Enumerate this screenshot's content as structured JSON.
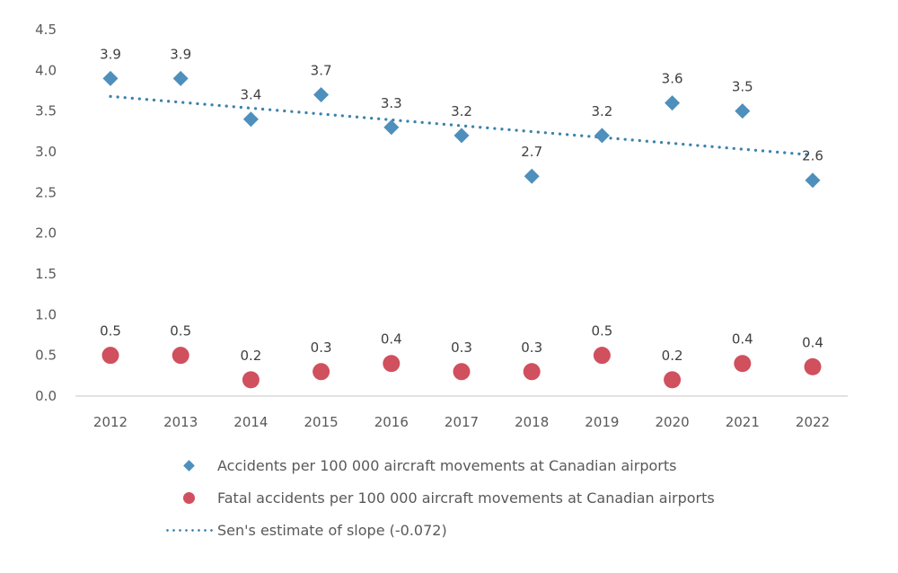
{
  "chart_data": {
    "type": "scatter",
    "title": "",
    "xlabel": "",
    "ylabel": "",
    "ylim": [
      0,
      4.5
    ],
    "yticks": [
      "0.0",
      "0.5",
      "1.0",
      "1.5",
      "2.0",
      "2.5",
      "3.0",
      "3.5",
      "4.0",
      "4.5"
    ],
    "ytick_values": [
      0,
      0.5,
      1.0,
      1.5,
      2.0,
      2.5,
      3.0,
      3.5,
      4.0,
      4.5
    ],
    "categories": [
      "2012",
      "2013",
      "2014",
      "2015",
      "2016",
      "2017",
      "2018",
      "2019",
      "2020",
      "2021",
      "2022"
    ],
    "grid": false,
    "legend_position": "bottom",
    "series": [
      {
        "name": "Accidents per 100 000 aircraft movements at Canadian airports",
        "marker": "diamond",
        "color": "#4e8fbc",
        "values": [
          3.9,
          3.9,
          3.4,
          3.7,
          3.3,
          3.2,
          2.7,
          3.2,
          3.6,
          3.5,
          2.65
        ],
        "labels": [
          "3.9",
          "3.9",
          "3.4",
          "3.7",
          "3.3",
          "3.2",
          "2.7",
          "3.2",
          "3.6",
          "3.5",
          "2.6"
        ]
      },
      {
        "name": "Fatal accidents per 100 000 aircraft movements at Canadian airports",
        "marker": "circle",
        "color": "#d0505e",
        "values": [
          0.5,
          0.5,
          0.2,
          0.3,
          0.4,
          0.3,
          0.3,
          0.5,
          0.2,
          0.4,
          0.36
        ],
        "labels": [
          "0.5",
          "0.5",
          "0.2",
          "0.3",
          "0.4",
          "0.3",
          "0.3",
          "0.5",
          "0.2",
          "0.4",
          "0.4"
        ]
      }
    ],
    "trendline": {
      "name": "Sen's estimate of slope (-0.072)",
      "style": "dotted",
      "color": "#3b82ad",
      "start": 3.68,
      "end": 2.96
    }
  },
  "legend": {
    "items": [
      "Accidents per 100 000 aircraft movements at Canadian airports",
      "Fatal accidents per 100 000 aircraft movements at Canadian airports",
      "Sen's estimate of slope (-0.072)"
    ]
  }
}
